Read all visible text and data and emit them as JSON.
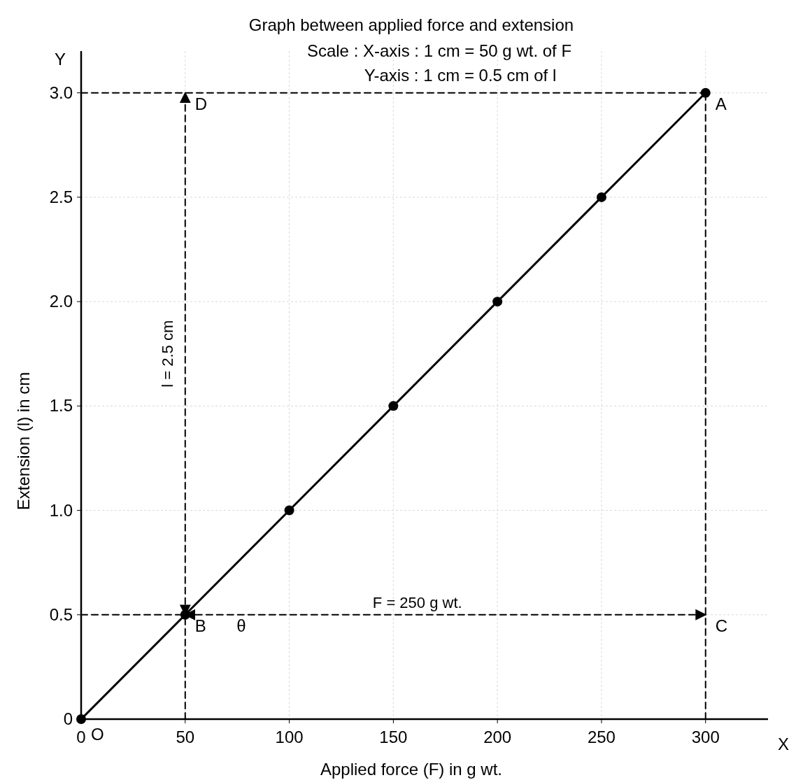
{
  "chart_data": {
    "type": "line",
    "title": "Graph between applied force and extension",
    "subtitle": "Scale : X-axis : 1 cm = 50 g wt. of F",
    "xlabel": "Applied force (F) in g wt.",
    "ylabel": "Extension (l) in cm",
    "xlim": [
      0,
      330
    ],
    "xticks": [
      0,
      50,
      100,
      150,
      200,
      250,
      300
    ],
    "ylim": [
      0,
      3.2
    ],
    "yticks": [
      0,
      {
        "value": 0.5,
        "label": "0.5"
      },
      {
        "value": 1,
        "label": "1.0"
      },
      {
        "value": 1.5,
        "label": "1.5"
      },
      {
        "value": 2,
        "label": "2.0"
      },
      {
        "value": 2.5,
        "label": "2.5"
      },
      {
        "value": 3,
        "label": "3.0"
      }
    ],
    "grid": true,
    "series": [
      {
        "color": "#000000",
        "x": [
          0,
          50,
          100,
          150,
          200,
          250,
          300
        ],
        "values": [
          0,
          0.5,
          1,
          1.5,
          2,
          2.5,
          3
        ],
        "marker": "circle",
        "line_style": "solid"
      },
      {
        "color": "#000000",
        "x": [
          0,
          300
        ],
        "values": [
          3,
          3
        ],
        "marker": "none",
        "line_style": "dashed"
      },
      {
        "color": "#000000",
        "x": [
          300,
          300
        ],
        "values": [
          0,
          3
        ],
        "marker": "none",
        "line_style": "dashed"
      },
      {
        "color": "#000000",
        "x": [
          50,
          50
        ],
        "values": [
          0,
          0.5
        ],
        "marker": "none",
        "line_style": "dashed"
      },
      {
        "name": "l = 2.5 cm",
        "color": "#000000",
        "x": [
          50,
          50
        ],
        "values": [
          0.5,
          3
        ],
        "marker": "none",
        "line_style": "dashed"
      },
      {
        "color": "#000000",
        "x": [
          0,
          50
        ],
        "values": [
          0.5,
          0.5
        ],
        "marker": "none",
        "line_style": "dashed"
      },
      {
        "name": "F = 250 g wt.",
        "color": "#000000",
        "x": [
          50,
          300
        ],
        "values": [
          0.5,
          0.5
        ],
        "marker": "none",
        "line_style": "dashed"
      }
    ],
    "annotations": [
      "Y-axis : 1 cm = 0.5 cm of l",
      {
        "text": "A",
        "x": 300,
        "y": 3
      },
      {
        "text": "B",
        "x": 50,
        "y": 0.5
      },
      {
        "text": "C",
        "x": 300,
        "y": 0.5
      },
      {
        "text": "D",
        "x": 50,
        "y": 3
      },
      {
        "text": "O",
        "x": 0,
        "y": 0
      },
      {
        "text": "θ",
        "x": 70,
        "y": 0.5
      },
      "X",
      "Y"
    ]
  }
}
